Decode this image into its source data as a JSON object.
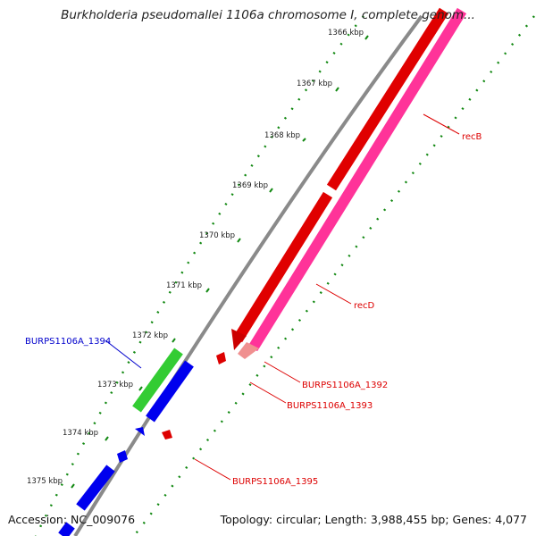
{
  "title": "Burkholderia pseudomallei 1106a chromosome I, complete genom...",
  "footer": {
    "accession": "Accession: NC_009076",
    "summary": "Topology: circular; Length: 3,988,455 bp; Genes: 4,077"
  },
  "ticks": [
    "1366 kbp",
    "1367 kbp",
    "1368 kbp",
    "1369 kbp",
    "1370 kbp",
    "1371 kbp",
    "1372 kbp",
    "1373 kbp",
    "1374 kbp",
    "1375 kbp"
  ],
  "genes": [
    {
      "name": "recB",
      "color": "#dd0000"
    },
    {
      "name": "recD",
      "color": "#dd0000"
    },
    {
      "name": "BURPS1106A_1392",
      "color": "#dd0000"
    },
    {
      "name": "BURPS1106A_1393",
      "color": "#dd0000"
    },
    {
      "name": "BURPS1106A_1394",
      "color": "#0000cc"
    },
    {
      "name": "BURPS1106A_1395",
      "color": "#dd0000"
    }
  ],
  "colors": {
    "forward_strand": "#ff0000",
    "reverse_strand": "#0000ee",
    "pink_feature": "#ff3399",
    "green_feature": "#33cc33",
    "backbone": "#888888",
    "tick_marks": "#118811"
  }
}
